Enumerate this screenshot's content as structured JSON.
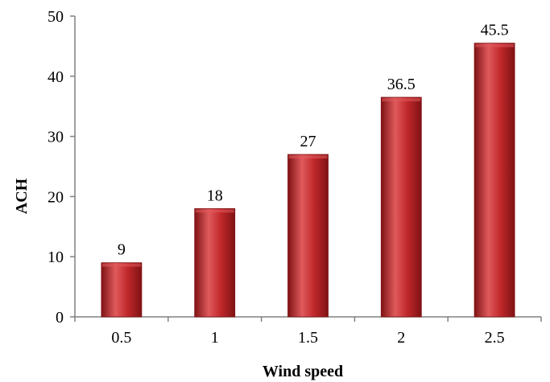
{
  "chart_data": {
    "type": "bar",
    "categories": [
      "0.5",
      "1",
      "1.5",
      "2",
      "2.5"
    ],
    "values": [
      9,
      18,
      27,
      36.5,
      45.5
    ],
    "data_labels": [
      "9",
      "18",
      "27",
      "36.5",
      "45.5"
    ],
    "title": "",
    "xlabel": "Wind speed",
    "ylabel": "ACH",
    "ylim": [
      0,
      50
    ],
    "yticks": [
      "0",
      "10",
      "20",
      "30",
      "40",
      "50"
    ],
    "grid": false,
    "legend": "none",
    "colors": {
      "bar_main": "#c0282b",
      "bar_light": "#e05a5c",
      "bar_dark": "#7f1214",
      "axis": "#808080"
    }
  }
}
